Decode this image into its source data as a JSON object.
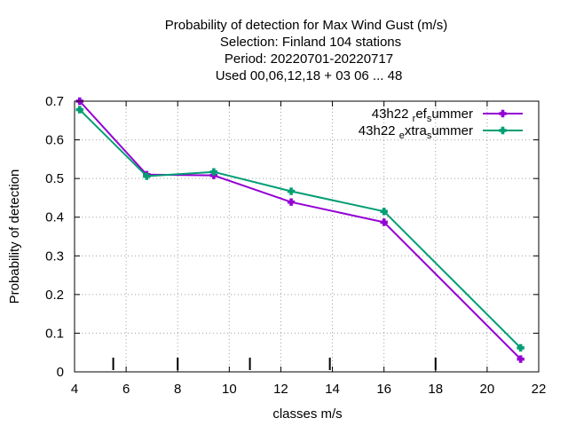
{
  "chart_data": {
    "type": "line",
    "title_lines": [
      "Probability of detection  for Max Wind Gust (m/s)",
      "Selection: Finland    104 stations",
      "Period: 20220701-20220717",
      "Used  00,06,12,18  + 03 06 ... 48"
    ],
    "xlabel": "classes m/s",
    "ylabel": "Probability of detection",
    "xlim": [
      4,
      22
    ],
    "ylim": [
      0,
      0.7
    ],
    "xticks": [
      4,
      6,
      8,
      10,
      12,
      14,
      16,
      18,
      20,
      22
    ],
    "yticks": [
      0,
      0.1,
      0.2,
      0.3,
      0.4,
      0.5,
      0.6,
      0.7
    ],
    "xtick_labels": [
      "4",
      "6",
      "8",
      "10",
      "12",
      "14",
      "16",
      "18",
      "20",
      "22"
    ],
    "ytick_labels": [
      "0",
      "0.1",
      "0.2",
      "0.3",
      "0.4",
      "0.5",
      "0.6",
      "0.7"
    ],
    "grid": true,
    "legend_position": "top-right",
    "class_boundaries": [
      5.5,
      8,
      10.8,
      13.9,
      18
    ],
    "series": [
      {
        "name": "43h22_ref_summer",
        "legend_parts": [
          "43h22 ",
          "r",
          "ef",
          "s",
          "ummer"
        ],
        "color": "#9400d3",
        "x": [
          4.2,
          6.8,
          9.4,
          12.4,
          16.0,
          21.3
        ],
        "values": [
          0.7,
          0.51,
          0.508,
          0.439,
          0.387,
          0.033
        ]
      },
      {
        "name": "43h22_extra_summer",
        "legend_parts": [
          "43h22 ",
          "e",
          "xtra",
          "s",
          "ummer"
        ],
        "color": "#009e73",
        "x": [
          4.2,
          6.8,
          9.4,
          12.4,
          16.0,
          21.3
        ],
        "values": [
          0.678,
          0.506,
          0.517,
          0.467,
          0.415,
          0.062
        ]
      }
    ]
  }
}
